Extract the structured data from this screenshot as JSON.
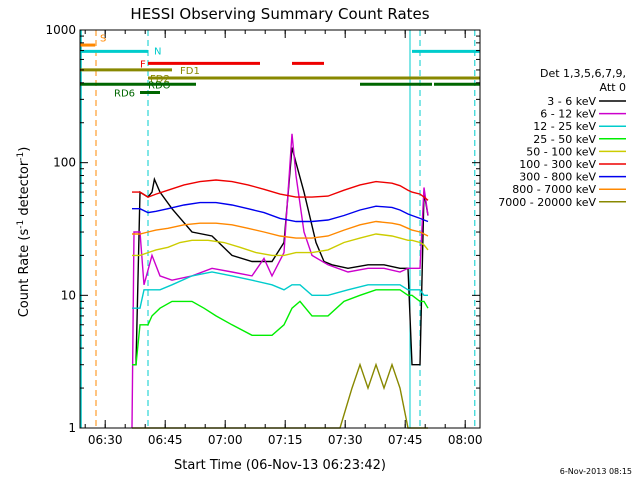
{
  "chart_data": {
    "type": "line",
    "title": "HESSI Observing Summary Count Rates",
    "xlabel": "Start Time (06-Nov-13 06:23:42)",
    "ylabel_main": "Count Rate (s",
    "ylabel_sup1": "-1",
    "ylabel_mid": " detector",
    "ylabel_sup2": "-1",
    "ylabel_end": ")",
    "x_unit": "minutes after 06:23:42",
    "xlim": [
      0,
      100
    ],
    "ylim": [
      1,
      1000
    ],
    "y_scale": "log",
    "x_ticks": [
      {
        "label": "06:30",
        "x": 6.3
      },
      {
        "label": "06:45",
        "x": 21.3
      },
      {
        "label": "07:00",
        "x": 36.3
      },
      {
        "label": "07:15",
        "x": 51.3
      },
      {
        "label": "07:30",
        "x": 66.3
      },
      {
        "label": "07:45",
        "x": 81.3
      },
      {
        "label": "08:00",
        "x": 96.3
      }
    ],
    "y_ticks": [
      {
        "label": "1",
        "y": 1
      },
      {
        "label": "10",
        "y": 10
      },
      {
        "label": "100",
        "y": 100
      },
      {
        "label": "1000",
        "y": 1000
      }
    ],
    "footer": "6-Nov-2013 08:15",
    "legend": {
      "header_line1": "Det 1,3,5,6,7,9,",
      "header_line2": "Att 0",
      "placement": "right"
    },
    "series": [
      {
        "name": "3 - 6 keV",
        "color": "#000000",
        "points": [
          [
            13,
            3
          ],
          [
            14,
            3
          ],
          [
            15,
            60
          ],
          [
            17,
            55
          ],
          [
            18,
            60
          ],
          [
            18.6,
            75
          ],
          [
            20,
            60
          ],
          [
            23,
            45
          ],
          [
            28,
            30
          ],
          [
            33,
            28
          ],
          [
            38,
            20
          ],
          [
            43,
            18
          ],
          [
            48,
            18
          ],
          [
            51,
            25
          ],
          [
            53,
            130
          ],
          [
            54,
            100
          ],
          [
            56,
            60
          ],
          [
            59,
            25
          ],
          [
            61,
            18
          ],
          [
            63,
            17
          ],
          [
            67,
            16
          ],
          [
            72,
            17
          ],
          [
            76,
            17
          ],
          [
            80,
            16
          ],
          [
            82,
            16
          ],
          [
            83,
            3
          ],
          [
            85,
            3
          ],
          [
            86,
            60
          ],
          [
            87,
            40
          ]
        ]
      },
      {
        "name": "6 - 12 keV",
        "color": "#cc00cc",
        "points": [
          [
            13,
            1
          ],
          [
            13.5,
            30
          ],
          [
            15,
            30
          ],
          [
            16,
            12
          ],
          [
            18,
            20
          ],
          [
            20,
            14
          ],
          [
            23,
            13
          ],
          [
            28,
            14
          ],
          [
            33,
            16
          ],
          [
            38,
            15
          ],
          [
            43,
            14
          ],
          [
            46,
            19
          ],
          [
            48,
            14
          ],
          [
            51,
            21
          ],
          [
            53,
            165
          ],
          [
            54,
            80
          ],
          [
            56,
            30
          ],
          [
            58,
            20
          ],
          [
            62,
            17
          ],
          [
            67,
            15
          ],
          [
            72,
            16
          ],
          [
            76,
            16
          ],
          [
            80,
            15
          ],
          [
            82,
            16
          ],
          [
            83,
            16
          ],
          [
            85,
            16
          ],
          [
            86,
            65
          ],
          [
            87,
            40
          ]
        ]
      },
      {
        "name": "12 - 25 keV",
        "color": "#00cccc",
        "points": [
          [
            13,
            8
          ],
          [
            15,
            8
          ],
          [
            16,
            11
          ],
          [
            18,
            11
          ],
          [
            20,
            11
          ],
          [
            23,
            12
          ],
          [
            28,
            14
          ],
          [
            33,
            15
          ],
          [
            38,
            14
          ],
          [
            43,
            13
          ],
          [
            48,
            12
          ],
          [
            51,
            11
          ],
          [
            53,
            12
          ],
          [
            55,
            12
          ],
          [
            58,
            10
          ],
          [
            62,
            10
          ],
          [
            67,
            11
          ],
          [
            72,
            12
          ],
          [
            76,
            12
          ],
          [
            80,
            12
          ],
          [
            82,
            11
          ],
          [
            83,
            11
          ],
          [
            85,
            11
          ],
          [
            86,
            10
          ],
          [
            87,
            10
          ]
        ]
      },
      {
        "name": "25 - 50 keV",
        "color": "#00ee00",
        "points": [
          [
            13,
            3
          ],
          [
            14,
            3
          ],
          [
            15,
            6
          ],
          [
            17,
            6
          ],
          [
            18,
            7
          ],
          [
            20,
            8
          ],
          [
            23,
            9
          ],
          [
            28,
            9
          ],
          [
            31,
            8
          ],
          [
            34,
            7
          ],
          [
            38,
            6
          ],
          [
            43,
            5
          ],
          [
            48,
            5
          ],
          [
            51,
            6
          ],
          [
            53,
            8
          ],
          [
            55,
            9
          ],
          [
            58,
            7
          ],
          [
            62,
            7
          ],
          [
            66,
            9
          ],
          [
            70,
            10
          ],
          [
            74,
            11
          ],
          [
            78,
            11
          ],
          [
            80,
            11
          ],
          [
            82,
            10
          ],
          [
            83,
            10
          ],
          [
            85,
            9
          ],
          [
            86,
            9
          ],
          [
            87,
            8
          ]
        ]
      },
      {
        "name": "50 - 100 keV",
        "color": "#cccc00",
        "points": [
          [
            13,
            20
          ],
          [
            15,
            20
          ],
          [
            17,
            21
          ],
          [
            19,
            22
          ],
          [
            22,
            23
          ],
          [
            25,
            25
          ],
          [
            28,
            26
          ],
          [
            32,
            26
          ],
          [
            36,
            25
          ],
          [
            40,
            23
          ],
          [
            44,
            21
          ],
          [
            48,
            20
          ],
          [
            51,
            20
          ],
          [
            54,
            21
          ],
          [
            58,
            21
          ],
          [
            62,
            22
          ],
          [
            66,
            25
          ],
          [
            70,
            27
          ],
          [
            74,
            29
          ],
          [
            78,
            28
          ],
          [
            80,
            27
          ],
          [
            82,
            26
          ],
          [
            83,
            26
          ],
          [
            85,
            25
          ],
          [
            86,
            24
          ],
          [
            87,
            22
          ]
        ]
      },
      {
        "name": "100 - 300 keV",
        "color": "#ee0000",
        "points": [
          [
            13,
            60
          ],
          [
            15,
            60
          ],
          [
            17,
            55
          ],
          [
            19,
            58
          ],
          [
            22,
            62
          ],
          [
            26,
            68
          ],
          [
            30,
            72
          ],
          [
            34,
            74
          ],
          [
            38,
            72
          ],
          [
            42,
            68
          ],
          [
            46,
            63
          ],
          [
            50,
            58
          ],
          [
            54,
            55
          ],
          [
            58,
            55
          ],
          [
            62,
            56
          ],
          [
            66,
            62
          ],
          [
            70,
            68
          ],
          [
            74,
            72
          ],
          [
            78,
            70
          ],
          [
            80,
            67
          ],
          [
            82,
            62
          ],
          [
            83,
            60
          ],
          [
            85,
            58
          ],
          [
            86,
            55
          ],
          [
            87,
            52
          ]
        ]
      },
      {
        "name": "300 - 800 keV",
        "color": "#0000ee",
        "points": [
          [
            13,
            45
          ],
          [
            15,
            45
          ],
          [
            17,
            42
          ],
          [
            19,
            43
          ],
          [
            22,
            45
          ],
          [
            26,
            48
          ],
          [
            30,
            50
          ],
          [
            34,
            50
          ],
          [
            38,
            48
          ],
          [
            42,
            45
          ],
          [
            46,
            42
          ],
          [
            50,
            38
          ],
          [
            54,
            36
          ],
          [
            58,
            36
          ],
          [
            62,
            37
          ],
          [
            66,
            40
          ],
          [
            70,
            44
          ],
          [
            74,
            47
          ],
          [
            78,
            46
          ],
          [
            80,
            44
          ],
          [
            82,
            41
          ],
          [
            83,
            40
          ],
          [
            85,
            38
          ],
          [
            86,
            37
          ],
          [
            87,
            36
          ]
        ]
      },
      {
        "name": "800 - 7000 keV",
        "color": "#ff8800",
        "points": [
          [
            13,
            29
          ],
          [
            15,
            29
          ],
          [
            17,
            30
          ],
          [
            19,
            31
          ],
          [
            22,
            32
          ],
          [
            26,
            34
          ],
          [
            30,
            35
          ],
          [
            34,
            35
          ],
          [
            38,
            34
          ],
          [
            42,
            32
          ],
          [
            46,
            30
          ],
          [
            50,
            28
          ],
          [
            54,
            27
          ],
          [
            58,
            27
          ],
          [
            62,
            28
          ],
          [
            66,
            31
          ],
          [
            70,
            34
          ],
          [
            74,
            36
          ],
          [
            78,
            35
          ],
          [
            80,
            34
          ],
          [
            82,
            32
          ],
          [
            83,
            31
          ],
          [
            85,
            30
          ],
          [
            86,
            29
          ],
          [
            87,
            28
          ]
        ]
      },
      {
        "name": "7000 - 20000 keV",
        "color": "#888800",
        "points": [
          [
            13,
            1
          ],
          [
            15,
            1
          ],
          [
            20,
            1
          ],
          [
            25,
            1
          ],
          [
            30,
            1
          ],
          [
            35,
            1
          ],
          [
            40,
            1
          ],
          [
            45,
            1
          ],
          [
            50,
            1
          ],
          [
            55,
            1
          ],
          [
            60,
            1
          ],
          [
            65,
            1
          ],
          [
            68,
            2
          ],
          [
            70,
            3
          ],
          [
            72,
            2
          ],
          [
            74,
            3
          ],
          [
            76,
            2
          ],
          [
            78,
            3
          ],
          [
            80,
            2
          ],
          [
            82,
            1
          ],
          [
            84,
            1
          ],
          [
            86,
            1
          ],
          [
            87,
            1
          ]
        ]
      }
    ],
    "flags": [
      {
        "name": "S",
        "color": "#ff8800",
        "y": 770,
        "segments": [
          [
            0,
            3.8
          ]
        ],
        "label_x": 5,
        "label_y": 880
      },
      {
        "name": "N",
        "color": "#00cccc",
        "y": 690,
        "segments": [
          [
            0,
            16.9
          ],
          [
            83,
            100
          ]
        ],
        "label_x": 18.5,
        "label_y": 700
      },
      {
        "name": "F",
        "color": "#ee0000",
        "y": 560,
        "segments": [
          [
            17,
            45
          ],
          [
            53,
            61
          ]
        ],
        "label_x": 15,
        "label_y": 560
      },
      {
        "name": "FD1",
        "color": "#888800",
        "y": 500,
        "segments": [
          [
            0,
            23
          ]
        ],
        "label_x": 25,
        "label_y": 500
      },
      {
        "name": "FD2",
        "color": "#888800",
        "y": 435,
        "segments": [
          [
            17,
            100
          ]
        ],
        "label_x": 17.5,
        "label_y": 435
      },
      {
        "name": "RDO",
        "color": "#006600",
        "y": 390,
        "segments": [
          [
            0,
            29
          ],
          [
            70,
            88
          ],
          [
            88.5,
            100
          ]
        ],
        "label_x": 17,
        "label_y": 390
      },
      {
        "name": "RD6",
        "color": "#006600",
        "y": 338,
        "segments": [
          [
            15,
            20
          ]
        ],
        "label_x": 8.5,
        "label_y": 338
      }
    ],
    "markers": [
      {
        "x": 4.0,
        "color": "#ff8800",
        "style": "dashed"
      },
      {
        "x": 17.0,
        "color": "#00cccc",
        "style": "dashed"
      },
      {
        "x": 82.5,
        "color": "#00cccc",
        "style": "solid"
      },
      {
        "x": 85.0,
        "color": "#00cccc",
        "style": "dashed"
      },
      {
        "x": 98.7,
        "color": "#00cccc",
        "style": "dashed"
      }
    ],
    "band_edges": [
      {
        "x": 0.0,
        "color": "#00cccc"
      }
    ]
  }
}
